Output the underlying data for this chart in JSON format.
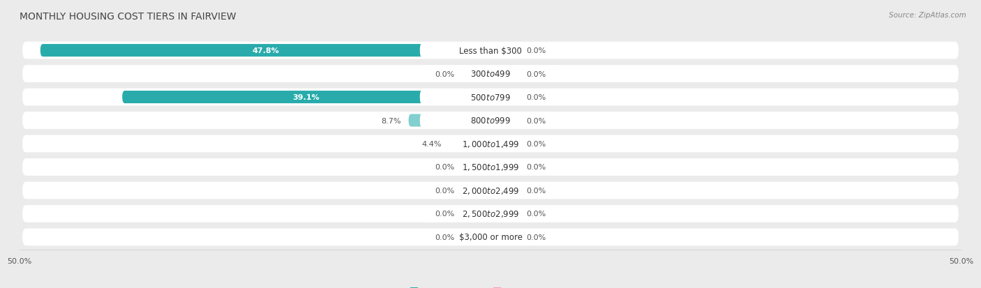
{
  "title": "MONTHLY HOUSING COST TIERS IN FAIRVIEW",
  "source": "Source: ZipAtlas.com",
  "categories": [
    "Less than $300",
    "$300 to $499",
    "$500 to $799",
    "$800 to $999",
    "$1,000 to $1,499",
    "$1,500 to $1,999",
    "$2,000 to $2,499",
    "$2,500 to $2,999",
    "$3,000 or more"
  ],
  "owner_values": [
    47.8,
    0.0,
    39.1,
    8.7,
    4.4,
    0.0,
    0.0,
    0.0,
    0.0
  ],
  "renter_values": [
    0.0,
    0.0,
    0.0,
    0.0,
    0.0,
    0.0,
    0.0,
    0.0,
    0.0
  ],
  "owner_color": "#29ABAB",
  "owner_color_light": "#82CFCF",
  "renter_color": "#F4A0B4",
  "label_color_dark": "#555555",
  "label_color_white": "#ffffff",
  "bg_color": "#EBEBEB",
  "row_bg_color": "#ffffff",
  "axis_limit": 50.0,
  "min_bar_display": 3.0,
  "title_fontsize": 10,
  "source_fontsize": 7.5,
  "bar_label_fontsize": 8,
  "cat_label_fontsize": 8.5,
  "legend_fontsize": 8,
  "axis_tick_fontsize": 8
}
